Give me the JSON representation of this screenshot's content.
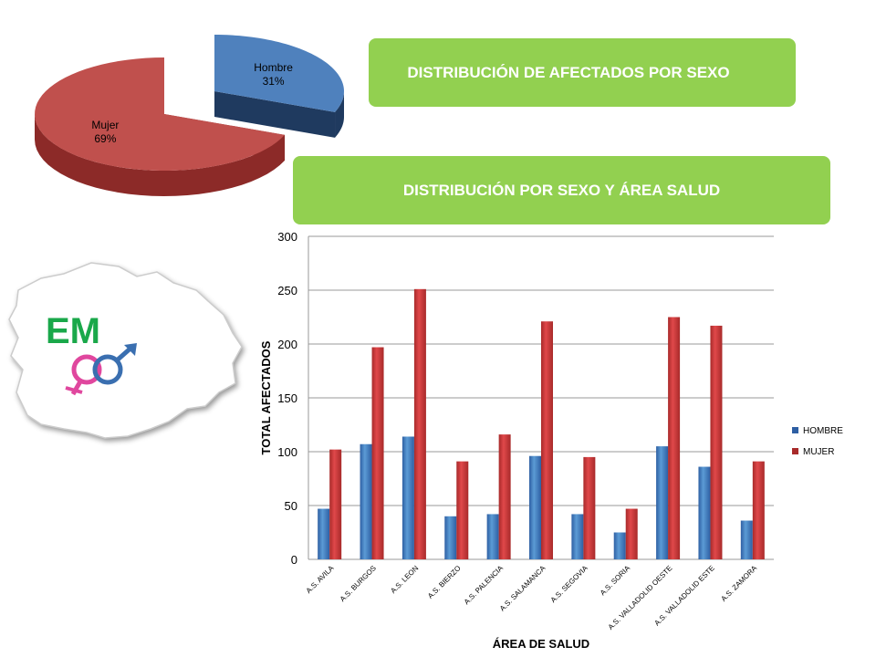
{
  "banners": {
    "sex_distribution": "DISTRIBUCIÓN DE AFECTADOS POR SEXO",
    "sex_area_distribution": "DISTRIBUCIÓN  POR SEXO Y ÁREA SALUD"
  },
  "logo": {
    "text": "EM",
    "symbol": "gender-symbols"
  },
  "colors": {
    "hombre": "#3a75c4",
    "mujer": "#c0392b",
    "banner": "#92d050",
    "logo_text": "#1aa84a"
  },
  "chart_data": [
    {
      "type": "pie",
      "title": "",
      "slices": [
        {
          "label": "Hombre",
          "value": 31,
          "pct_label": "31%"
        },
        {
          "label": "Mujer",
          "value": 69,
          "pct_label": "69%"
        }
      ]
    },
    {
      "type": "bar",
      "title": "",
      "xlabel": "ÁREA DE SALUD",
      "ylabel": "TOTAL AFECTADOS",
      "ylim": [
        0,
        300
      ],
      "yticks": [
        0,
        50,
        100,
        150,
        200,
        250,
        300
      ],
      "grid": true,
      "legend": "right",
      "categories": [
        "A.S. AVILA",
        "A.S. BURGOS",
        "A.S. LEON",
        "A.S. BIERZO",
        "A.S. PALENCIA",
        "A.S. SALAMANCA",
        "A.S. SEGOVIA",
        "A.S. SORIA",
        "A.S. VALLADOLID OESTE",
        "A.S. VALLADOLID ESTE",
        "A.S. ZAMORA"
      ],
      "series": [
        {
          "name": "HOMBRE",
          "values": [
            47,
            107,
            114,
            40,
            42,
            96,
            42,
            25,
            105,
            86,
            36
          ]
        },
        {
          "name": "MUJER",
          "values": [
            102,
            197,
            251,
            91,
            116,
            221,
            95,
            47,
            225,
            217,
            91
          ]
        }
      ]
    }
  ]
}
